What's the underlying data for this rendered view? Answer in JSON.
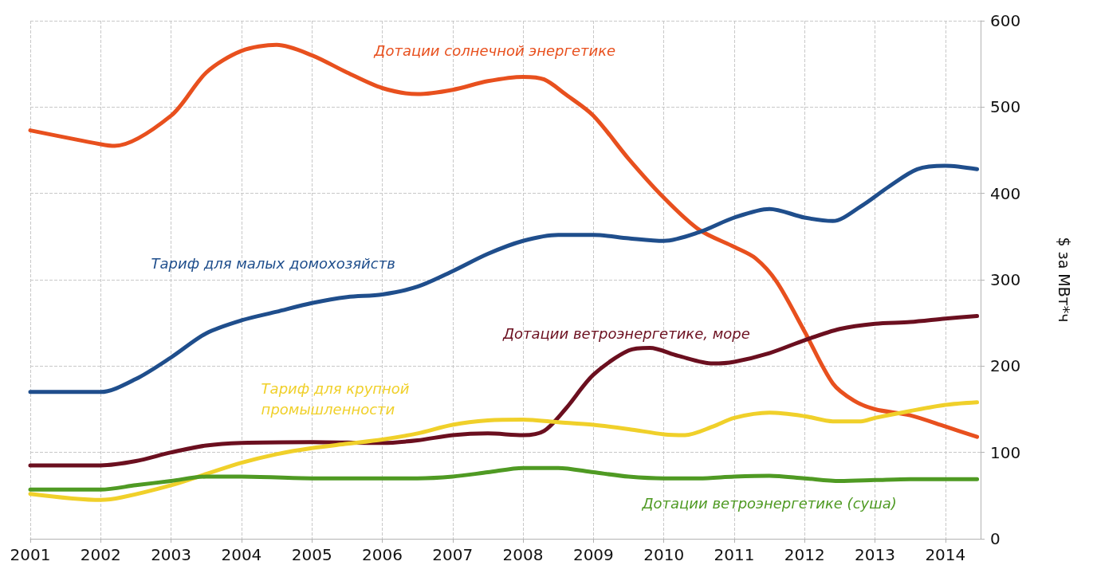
{
  "chart_data": {
    "type": "line",
    "ylabel": "$ за МВт*ч",
    "xlim": [
      2001,
      2014.5
    ],
    "xticks": [
      2001,
      2002,
      2003,
      2004,
      2005,
      2006,
      2007,
      2008,
      2009,
      2010,
      2011,
      2012,
      2013,
      2014
    ],
    "ylim": [
      0,
      600
    ],
    "yticks": [
      0,
      100,
      200,
      300,
      400,
      500,
      600
    ],
    "grid": true,
    "legend": false,
    "marker": "none",
    "line_style": "solid",
    "series": [
      {
        "name": "Дотации солнечной энергетике",
        "color": "#e8501e",
        "x": [
          2001,
          2002,
          2002.2,
          2003,
          2003.5,
          2004,
          2004.5,
          2005,
          2005.5,
          2006,
          2006.5,
          2007,
          2007.5,
          2008,
          2008.3,
          2008.6,
          2009,
          2009.5,
          2010,
          2010.5,
          2011,
          2011.3,
          2011.6,
          2012,
          2012.4,
          2012.7,
          2013,
          2013.5,
          2014,
          2014.45
        ],
        "values": [
          473,
          457,
          455,
          490,
          540,
          565,
          572,
          560,
          540,
          522,
          515,
          520,
          530,
          535,
          532,
          515,
          490,
          440,
          395,
          358,
          338,
          325,
          298,
          240,
          180,
          160,
          150,
          143,
          130,
          118
        ]
      },
      {
        "name": "Тариф для малых домохозяйств",
        "color": "#1f4e8c",
        "x": [
          2001,
          2002,
          2002.5,
          2003,
          2003.5,
          2004,
          2004.5,
          2005,
          2005.5,
          2006,
          2006.5,
          2007,
          2007.5,
          2008,
          2008.5,
          2009,
          2009.5,
          2010,
          2010.5,
          2011,
          2011.5,
          2012,
          2012.4,
          2012.8,
          2013.2,
          2013.6,
          2014,
          2014.45
        ],
        "values": [
          170,
          170,
          185,
          210,
          238,
          253,
          263,
          273,
          280,
          283,
          292,
          310,
          330,
          345,
          352,
          352,
          348,
          345,
          355,
          372,
          382,
          372,
          368,
          385,
          408,
          428,
          432,
          428
        ]
      },
      {
        "name": "Дотации ветроэнергетике, море",
        "color": "#6b0f1f",
        "x": [
          2001,
          2002,
          2002.5,
          2003,
          2003.5,
          2004,
          2005,
          2006,
          2006.5,
          2007,
          2007.5,
          2008,
          2008.3,
          2008.6,
          2009,
          2009.5,
          2009.8,
          2010.2,
          2010.7,
          2011,
          2011.5,
          2012,
          2012.5,
          2013,
          2013.5,
          2014,
          2014.45
        ],
        "values": [
          85,
          85,
          90,
          100,
          108,
          111,
          112,
          111,
          114,
          120,
          122,
          120,
          125,
          150,
          190,
          218,
          221,
          212,
          203,
          205,
          215,
          230,
          243,
          249,
          251,
          255,
          258
        ]
      },
      {
        "name": "Тариф для крупной промышленности",
        "color": "#f0d02a",
        "x": [
          2001,
          2002,
          2002.3,
          2003,
          2003.5,
          2004,
          2004.5,
          2005,
          2005.5,
          2006,
          2006.5,
          2007,
          2007.5,
          2008,
          2008.5,
          2009,
          2009.5,
          2010,
          2010.3,
          2010.7,
          2011,
          2011.5,
          2012,
          2012.4,
          2012.8,
          2013,
          2013.5,
          2014,
          2014.45
        ],
        "values": [
          52,
          45,
          48,
          62,
          75,
          88,
          98,
          105,
          110,
          115,
          122,
          132,
          137,
          138,
          135,
          132,
          127,
          121,
          120,
          130,
          140,
          146,
          142,
          136,
          136,
          140,
          148,
          155,
          158
        ]
      },
      {
        "name": "Дотации ветроэнергетике (суша)",
        "color": "#4f9a23",
        "x": [
          2001,
          2002,
          2002.5,
          2003,
          2003.5,
          2004,
          2005,
          2006,
          2006.5,
          2007,
          2007.5,
          2008,
          2008.5,
          2009,
          2009.5,
          2010,
          2010.5,
          2011,
          2011.5,
          2012,
          2012.5,
          2013,
          2013.5,
          2014,
          2014.45
        ],
        "values": [
          57,
          57,
          62,
          67,
          72,
          72,
          70,
          70,
          70,
          72,
          77,
          82,
          82,
          77,
          72,
          70,
          70,
          72,
          73,
          70,
          67,
          68,
          69,
          69,
          69
        ]
      }
    ]
  }
}
